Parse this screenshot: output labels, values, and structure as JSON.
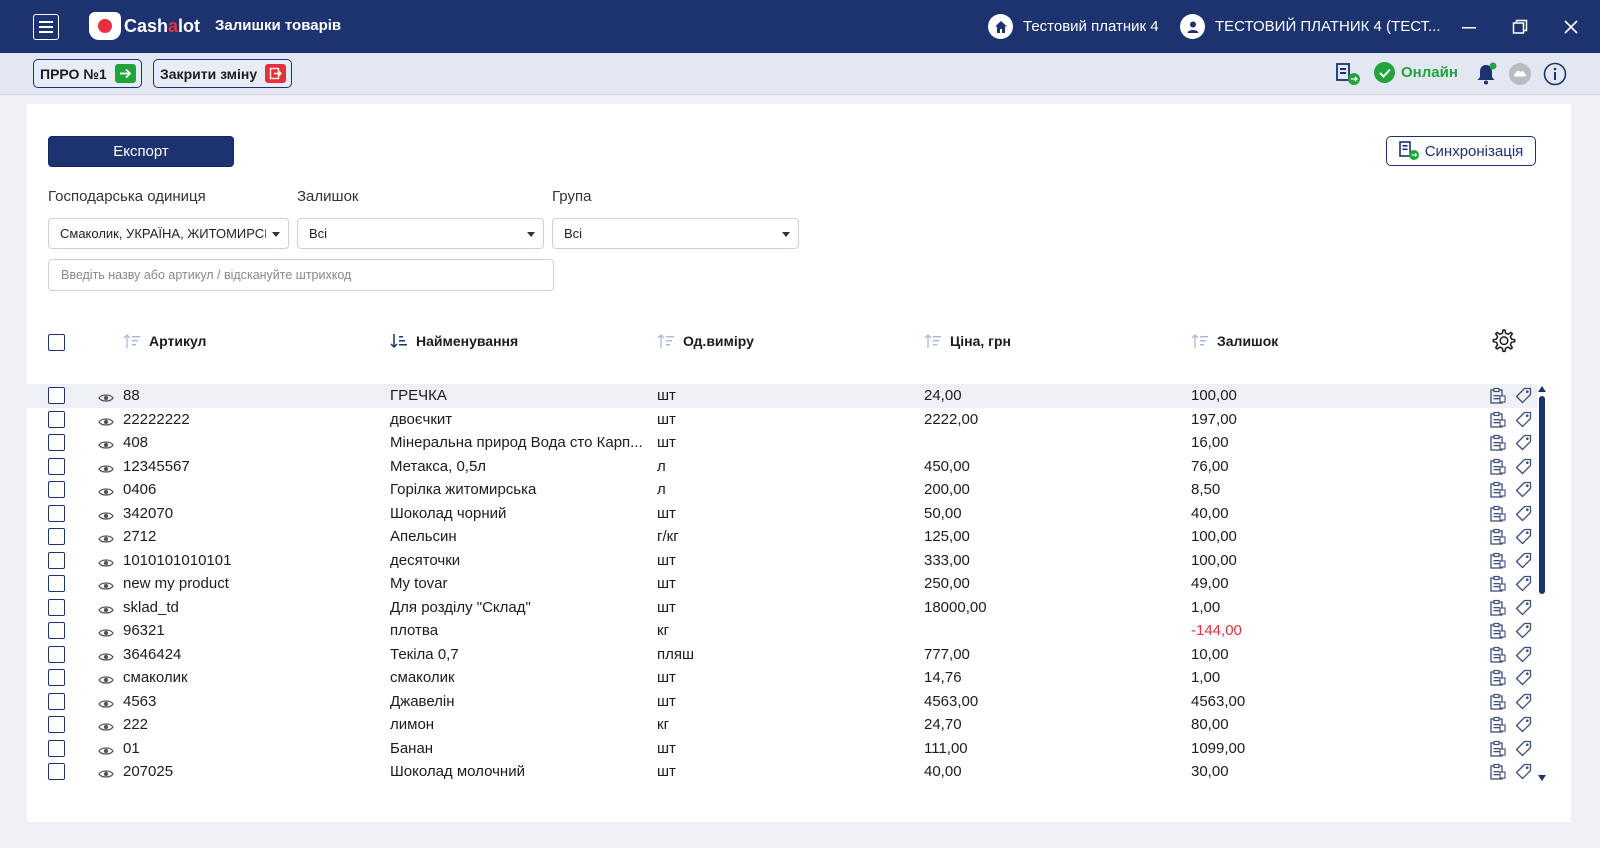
{
  "app": {
    "logo_text_a": "Cash",
    "logo_text_b": "a",
    "logo_text_c": "lot",
    "page_title": "Залишки товарів",
    "taxpayer": "Тестовий платник 4",
    "user": "ТЕСТОВИЙ ПЛАТНИК 4 (ТЕСТ..."
  },
  "toolbar": {
    "prro_label": "ПРРО №1",
    "close_shift_label": "Закрити зміну",
    "online_label": "Онлайн"
  },
  "actions": {
    "export_label": "Експорт",
    "sync_label": "Синхронізація"
  },
  "filters": {
    "unit_label": "Господарська одиниця",
    "unit_value": "Смаколик, УКРАЇНА, ЖИТОМИРСЬКА",
    "balance_label": "Залишок",
    "balance_value": "Всі",
    "group_label": "Група",
    "group_value": "Всі",
    "search_placeholder": "Введіть назву або артикул / відскануйте штрихкод"
  },
  "table": {
    "columns": {
      "article": "Артикул",
      "name": "Найменування",
      "unit": "Од.виміру",
      "price": "Ціна, грн",
      "balance": "Залишок"
    },
    "rows": [
      {
        "article": "88",
        "name": "ГРЕЧКА",
        "unit": "шт",
        "price": "24,00",
        "balance": "100,00"
      },
      {
        "article": "22222222",
        "name": "двоєчкит",
        "unit": "шт",
        "price": "2222,00",
        "balance": "197,00"
      },
      {
        "article": "408",
        "name": "Мінеральна природ Вода сто Карп...",
        "unit": "шт",
        "price": "",
        "balance": "16,00"
      },
      {
        "article": "12345567",
        "name": "Метакса, 0,5л",
        "unit": "л",
        "price": "450,00",
        "balance": "76,00"
      },
      {
        "article": "0406",
        "name": "Горілка житомирська",
        "unit": "л",
        "price": "200,00",
        "balance": "8,50"
      },
      {
        "article": "342070",
        "name": "Шоколад чорний",
        "unit": "шт",
        "price": "50,00",
        "balance": "40,00"
      },
      {
        "article": "2712",
        "name": "Апельсин",
        "unit": "г/кг",
        "price": "125,00",
        "balance": "100,00"
      },
      {
        "article": "1010101010101",
        "name": "десяточки",
        "unit": "шт",
        "price": "333,00",
        "balance": "100,00"
      },
      {
        "article": "new my product",
        "name": "My tovar",
        "unit": "шт",
        "price": "250,00",
        "balance": "49,00"
      },
      {
        "article": "sklad_td",
        "name": "Для розділу \"Склад\"",
        "unit": "шт",
        "price": "18000,00",
        "balance": "1,00"
      },
      {
        "article": "96321",
        "name": "плотва",
        "unit": "кг",
        "price": "",
        "balance": "-144,00",
        "negative": true
      },
      {
        "article": "3646424",
        "name": "Текіла 0,7",
        "unit": "пляш",
        "price": "777,00",
        "balance": "10,00"
      },
      {
        "article": "смаколик",
        "name": "смаколик",
        "unit": "шт",
        "price": "14,76",
        "balance": "1,00"
      },
      {
        "article": "4563",
        "name": "Джавелін",
        "unit": "шт",
        "price": "4563,00",
        "balance": "4563,00"
      },
      {
        "article": "222",
        "name": "лимон",
        "unit": "кг",
        "price": "24,70",
        "balance": "80,00"
      },
      {
        "article": "01",
        "name": "Банан",
        "unit": "шт",
        "price": "111,00",
        "balance": "1099,00"
      },
      {
        "article": "207025",
        "name": "Шоколад молочний",
        "unit": "шт",
        "price": "40,00",
        "balance": "30,00"
      }
    ]
  },
  "colors": {
    "brand": "#1c3370",
    "online": "#22a43b",
    "negative": "#e8303c"
  },
  "icons": [
    "menu-icon",
    "home-icon",
    "user-icon",
    "minimize-icon",
    "restore-icon",
    "close-icon",
    "arrow-right-icon",
    "exit-icon",
    "sync-icon",
    "check-icon",
    "bell-icon",
    "cloud-icon",
    "info-icon",
    "sort-icon",
    "gear-icon",
    "eye-icon",
    "clipboard-icon",
    "tag-icon"
  ]
}
